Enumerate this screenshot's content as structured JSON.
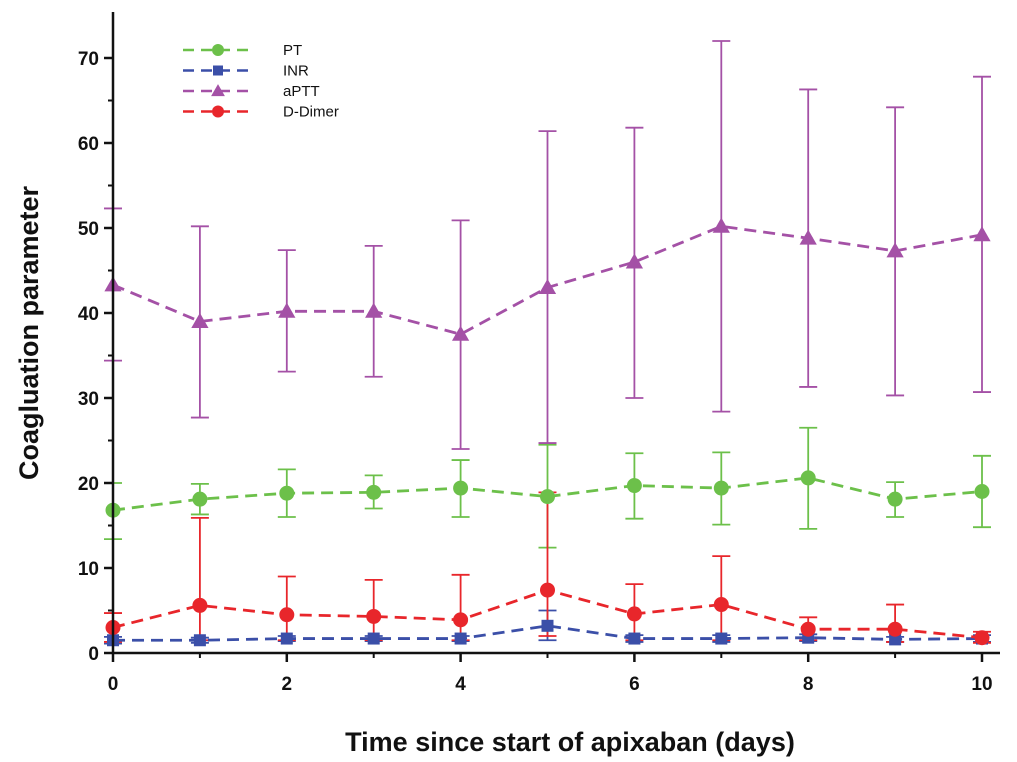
{
  "chart_data": {
    "type": "line",
    "xlabel": "Time since start of apixaban (days)",
    "ylabel": "Coagluation parameter",
    "xlim": [
      0,
      10.3
    ],
    "ylim": [
      0,
      75
    ],
    "xticks": [
      0,
      2,
      4,
      6,
      8,
      10
    ],
    "yticks": [
      0,
      10,
      20,
      30,
      40,
      50,
      60,
      70
    ],
    "grid": false,
    "legend_position": "top-left",
    "x": [
      0,
      1,
      2,
      3,
      4,
      5,
      6,
      7,
      8,
      9,
      10
    ],
    "series": [
      {
        "name": "PT",
        "color": "#6cc04a",
        "marker": "circle",
        "values": [
          16.8,
          18.1,
          18.8,
          18.9,
          19.4,
          18.4,
          19.7,
          19.4,
          20.6,
          18.1,
          19.0
        ],
        "err_low": [
          13.4,
          16.3,
          16.0,
          17.0,
          16.0,
          12.4,
          15.8,
          15.1,
          14.6,
          16.0,
          14.8
        ],
        "err_high": [
          20.0,
          19.9,
          21.6,
          20.9,
          22.7,
          24.5,
          23.5,
          23.6,
          26.5,
          20.1,
          23.2
        ]
      },
      {
        "name": "INR",
        "color": "#3b4fa8",
        "marker": "square",
        "values": [
          1.5,
          1.5,
          1.7,
          1.7,
          1.7,
          3.2,
          1.7,
          1.7,
          1.8,
          1.6,
          1.7
        ],
        "err_low": [
          1.1,
          1.2,
          1.4,
          1.4,
          1.4,
          1.5,
          1.3,
          1.3,
          1.4,
          1.3,
          1.3
        ],
        "err_high": [
          1.9,
          1.8,
          2.0,
          2.0,
          2.0,
          5.0,
          2.1,
          2.1,
          2.2,
          1.9,
          2.1
        ]
      },
      {
        "name": "aPTT",
        "color": "#a451a6",
        "marker": "triangle",
        "values": [
          43.3,
          39.0,
          40.2,
          40.2,
          37.5,
          43.0,
          46.0,
          50.2,
          48.8,
          47.3,
          49.2
        ],
        "err_low": [
          34.4,
          27.7,
          33.1,
          32.5,
          24.0,
          24.7,
          30.0,
          28.4,
          31.3,
          30.3,
          30.7
        ],
        "err_high": [
          52.3,
          50.2,
          47.4,
          47.9,
          50.9,
          61.4,
          61.8,
          72.0,
          66.3,
          64.2,
          67.8
        ]
      },
      {
        "name": "D-Dimer",
        "color": "#e8262b",
        "marker": "circle",
        "values": [
          3.0,
          5.6,
          4.5,
          4.3,
          3.9,
          7.4,
          4.6,
          5.7,
          2.8,
          2.8,
          1.8
        ],
        "err_low": [
          1.3,
          1.5,
          1.5,
          1.5,
          1.5,
          2.0,
          1.5,
          1.5,
          1.5,
          1.3,
          1.2
        ],
        "err_high": [
          4.7,
          15.9,
          9.0,
          8.6,
          9.2,
          18.9,
          8.1,
          11.4,
          4.2,
          5.7,
          2.5
        ]
      }
    ]
  }
}
